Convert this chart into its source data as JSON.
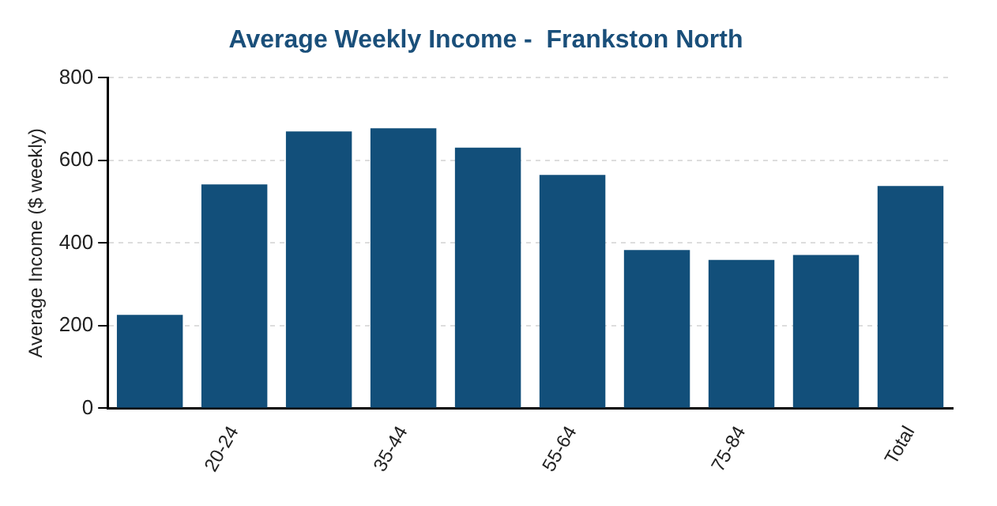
{
  "chart_data": {
    "type": "bar",
    "title": "Average Weekly Income -  Frankston North",
    "ylabel": "Average Income ($ weekly)",
    "categories": [
      null,
      "20-24",
      null,
      "35-44",
      null,
      "55-64",
      null,
      "75-84",
      null,
      "Total"
    ],
    "values": [
      226,
      542,
      670,
      678,
      631,
      565,
      383,
      359,
      371,
      538
    ],
    "color": "#124f7a",
    "ylim": [
      0,
      800
    ],
    "yticks": [
      0,
      200,
      400,
      600,
      800
    ],
    "grid": "y",
    "legend": false
  }
}
